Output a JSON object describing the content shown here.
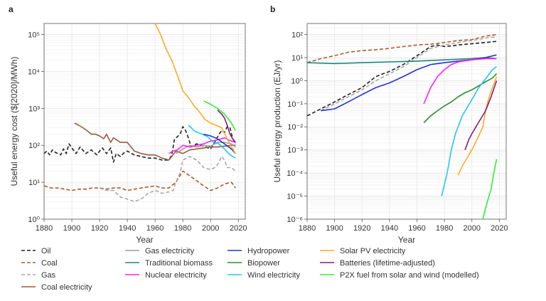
{
  "colors": {
    "oil": "#222222",
    "coal": "#b05a2c",
    "gas": "#a8a8a8",
    "coal_electricity": "#9a5a3c",
    "gas_electricity": "#9c9c9c",
    "traditional_biomass": "#1a8a7a",
    "nuclear_electricity": "#ff22ee",
    "hydropower": "#2233dd",
    "biopower": "#2e8b2e",
    "wind_electricity": "#22c8ee",
    "solar_pv_electricity": "#ffaa22",
    "batteries": "#8a1a7a",
    "p2x": "#33ee33"
  },
  "legend": [
    {
      "label": "Oil",
      "key": "oil",
      "style": "dashed"
    },
    {
      "label": "Coal",
      "key": "coal",
      "style": "dashed"
    },
    {
      "label": "Gas",
      "key": "gas",
      "style": "dashed"
    },
    {
      "label": "Coal electricity",
      "key": "coal_electricity",
      "style": "solid"
    },
    {
      "label": "Gas electricity",
      "key": "gas_electricity",
      "style": "solid"
    },
    {
      "label": "Traditional biomass",
      "key": "traditional_biomass",
      "style": "solid"
    },
    {
      "label": "Nuclear electricity",
      "key": "nuclear_electricity",
      "style": "solid"
    },
    {
      "label": "Hydropower",
      "key": "hydropower",
      "style": "solid"
    },
    {
      "label": "Biopower",
      "key": "biopower",
      "style": "solid"
    },
    {
      "label": "Wind electricity",
      "key": "wind_electricity",
      "style": "solid"
    },
    {
      "label": "Solar PV electricity",
      "key": "solar_pv_electricity",
      "style": "solid"
    },
    {
      "label": "Batteries (lifetime-adjusted)",
      "key": "batteries",
      "style": "solid"
    },
    {
      "label": "P2X fuel from solar and wind (modelled)",
      "key": "p2x",
      "style": "solid"
    }
  ],
  "chart_data": [
    {
      "type": "line",
      "panel": "a",
      "xlabel": "Year",
      "ylabel": "Useful energy cost ($[2020]/MWh)",
      "xlim": [
        1880,
        2025
      ],
      "ylim": [
        1,
        200000
      ],
      "yscale": "log",
      "xticks": [
        "1880",
        "1900",
        "1920",
        "1940",
        "1960",
        "1980",
        "2000",
        "2020"
      ],
      "yticks": [
        "10^0",
        "10^1",
        "10^2",
        "10^3",
        "10^4",
        "10^5"
      ],
      "grid": true,
      "series": [
        {
          "name": "Oil",
          "key": "oil",
          "style": "dashed",
          "x": [
            1880,
            1882,
            1884,
            1886,
            1888,
            1890,
            1892,
            1894,
            1896,
            1898,
            1900,
            1903,
            1906,
            1910,
            1914,
            1918,
            1920,
            1922,
            1925,
            1928,
            1930,
            1932,
            1935,
            1938,
            1940,
            1945,
            1950,
            1955,
            1960,
            1965,
            1970,
            1972,
            1974,
            1976,
            1978,
            1980,
            1982,
            1984,
            1986,
            1988,
            1990,
            1995,
            2000,
            2004,
            2006,
            2008,
            2010,
            2012,
            2014,
            2016,
            2018
          ],
          "y": [
            60,
            70,
            55,
            75,
            65,
            60,
            55,
            80,
            60,
            110,
            85,
            60,
            90,
            60,
            75,
            55,
            70,
            85,
            60,
            85,
            35,
            60,
            50,
            65,
            70,
            55,
            50,
            45,
            45,
            40,
            40,
            55,
            150,
            170,
            200,
            320,
            250,
            160,
            90,
            100,
            110,
            95,
            80,
            140,
            200,
            250,
            220,
            320,
            300,
            150,
            110
          ]
        },
        {
          "name": "Coal",
          "key": "coal",
          "style": "dashed",
          "x": [
            1880,
            1885,
            1890,
            1895,
            1900,
            1905,
            1910,
            1915,
            1920,
            1925,
            1930,
            1935,
            1940,
            1945,
            1950,
            1955,
            1960,
            1965,
            1970,
            1975,
            1980,
            1985,
            1990,
            1995,
            2000,
            2005,
            2010,
            2015,
            2018
          ],
          "y": [
            8,
            7,
            7,
            6.5,
            6,
            6.5,
            6.5,
            7,
            7,
            6.5,
            7,
            7,
            6,
            6.5,
            7,
            7.5,
            8,
            7,
            7,
            10,
            20,
            15,
            11,
            8,
            6,
            7,
            9,
            10,
            7
          ]
        },
        {
          "name": "Gas",
          "key": "gas",
          "style": "dashed",
          "x": [
            1920,
            1925,
            1930,
            1935,
            1940,
            1945,
            1950,
            1955,
            1960,
            1965,
            1970,
            1973,
            1975,
            1978,
            1980,
            1985,
            1990,
            1995,
            2000,
            2003,
            2005,
            2008,
            2010,
            2012,
            2015,
            2018
          ],
          "y": [
            7,
            6,
            6,
            4,
            3.5,
            3,
            3.5,
            5,
            6,
            5,
            5.5,
            6,
            10,
            18,
            40,
            50,
            40,
            25,
            22,
            25,
            30,
            50,
            40,
            25,
            25,
            20
          ]
        },
        {
          "name": "Coal electricity",
          "key": "coal_electricity",
          "style": "solid",
          "x": [
            1902,
            1905,
            1908,
            1911,
            1914,
            1917,
            1920,
            1923,
            1925,
            1928,
            1930,
            1935,
            1940,
            1945,
            1950,
            1955,
            1960,
            1965,
            1970,
            1975,
            1980,
            1985,
            1990,
            1995,
            2000,
            2005,
            2010,
            2015,
            2018
          ],
          "y": [
            400,
            350,
            300,
            250,
            200,
            200,
            180,
            150,
            200,
            120,
            160,
            120,
            120,
            70,
            60,
            55,
            55,
            45,
            40,
            70,
            60,
            75,
            80,
            85,
            90,
            90,
            95,
            100,
            100
          ]
        },
        {
          "name": "Gas electricity",
          "key": "gas_electricity",
          "style": "solid",
          "x": [
            1975,
            1980,
            1985,
            1990,
            1995,
            2000,
            2005,
            2010,
            2015,
            2018
          ],
          "y": [
            60,
            80,
            100,
            90,
            100,
            95,
            120,
            120,
            110,
            90
          ]
        },
        {
          "name": "Nuclear electricity",
          "key": "nuclear_electricity",
          "style": "solid",
          "x": [
            1970,
            1973,
            1976,
            1980,
            1985,
            1990,
            1995,
            2000,
            2005,
            2010,
            2015,
            2018
          ],
          "y": [
            60,
            70,
            75,
            100,
            90,
            100,
            110,
            130,
            140,
            160,
            130,
            120
          ]
        },
        {
          "name": "Wind electricity",
          "key": "wind_electricity",
          "style": "solid",
          "x": [
            1984,
            1986,
            1988,
            1990,
            1994,
            1998,
            2002,
            2006,
            2010,
            2014,
            2018
          ],
          "y": [
            350,
            300,
            250,
            230,
            200,
            170,
            120,
            110,
            80,
            55,
            45
          ]
        },
        {
          "name": "Hydropower",
          "key": "hydropower",
          "style": "solid",
          "x": [
            1995,
            2000,
            2005,
            2010,
            2015,
            2018
          ],
          "y": [
            200,
            180,
            150,
            110,
            80,
            60
          ]
        },
        {
          "name": "Batteries (lifetime-adjusted)",
          "key": "batteries",
          "style": "solid",
          "x": [
            2005,
            2008,
            2010,
            2012,
            2014,
            2016,
            2018
          ],
          "y": [
            900,
            700,
            550,
            350,
            200,
            150,
            120
          ]
        },
        {
          "name": "Solar PV electricity",
          "key": "solar_pv_electricity",
          "style": "solid",
          "x": [
            1960,
            1964,
            1968,
            1972,
            1976,
            1980,
            1984,
            1988,
            1992,
            1996,
            2000,
            2004,
            2008,
            2012,
            2016,
            2018
          ],
          "y": [
            200000,
            100000,
            40000,
            20000,
            8000,
            3000,
            2000,
            1200,
            800,
            500,
            400,
            350,
            300,
            150,
            80,
            60
          ]
        },
        {
          "name": "P2X fuel from solar and wind (modelled)",
          "key": "p2x",
          "style": "solid",
          "x": [
            1995,
            2000,
            2005,
            2010,
            2015,
            2018
          ],
          "y": [
            1600,
            1300,
            1000,
            700,
            400,
            250
          ]
        }
      ]
    },
    {
      "type": "line",
      "panel": "b",
      "xlabel": "Year",
      "ylabel": "Useful energy production (EJ/yr)",
      "xlim": [
        1880,
        2025
      ],
      "ylim": [
        1e-06,
        300
      ],
      "yscale": "log",
      "xticks": [
        "1880",
        "1900",
        "1920",
        "1940",
        "1960",
        "1980",
        "2000",
        "2020"
      ],
      "yticks": [
        "10^-6",
        "10^-5",
        "10^-4",
        "10^-3",
        "10^-2",
        "10^-1",
        "10^0",
        "10^1",
        "10^2"
      ],
      "grid": true,
      "series": [
        {
          "name": "Oil",
          "key": "oil",
          "style": "dashed",
          "x": [
            1880,
            1890,
            1900,
            1910,
            1920,
            1930,
            1940,
            1950,
            1960,
            1970,
            1975,
            1980,
            1990,
            2000,
            2010,
            2018
          ],
          "y": [
            0.03,
            0.06,
            0.12,
            0.25,
            0.5,
            1.5,
            2.5,
            5,
            12,
            30,
            35,
            30,
            35,
            40,
            45,
            50
          ]
        },
        {
          "name": "Coal",
          "key": "coal",
          "style": "dashed",
          "x": [
            1880,
            1890,
            1900,
            1910,
            1920,
            1930,
            1940,
            1950,
            1960,
            1970,
            1980,
            1990,
            2000,
            2010,
            2018
          ],
          "y": [
            6,
            9,
            12,
            17,
            20,
            22,
            25,
            30,
            35,
            38,
            45,
            55,
            60,
            85,
            100
          ]
        },
        {
          "name": "Gas",
          "key": "gas",
          "style": "dashed",
          "x": [
            1890,
            1900,
            1910,
            1920,
            1930,
            1940,
            1950,
            1960,
            1970,
            1980,
            1990,
            2000,
            2010,
            2018
          ],
          "y": [
            0.05,
            0.1,
            0.2,
            0.4,
            1,
            2,
            4,
            10,
            25,
            35,
            45,
            55,
            70,
            80
          ]
        },
        {
          "name": "Traditional biomass",
          "key": "traditional_biomass",
          "style": "solid",
          "x": [
            1880,
            1900,
            1920,
            1940,
            1960,
            1980,
            2000,
            2010,
            2018
          ],
          "y": [
            6,
            5.5,
            6,
            6.5,
            7,
            8,
            9,
            10,
            9
          ]
        },
        {
          "name": "Hydropower",
          "key": "hydropower",
          "style": "solid",
          "x": [
            1890,
            1900,
            1910,
            1920,
            1930,
            1940,
            1950,
            1960,
            1970,
            1980,
            1990,
            2000,
            2010,
            2018
          ],
          "y": [
            0.05,
            0.06,
            0.12,
            0.25,
            0.5,
            0.8,
            1.5,
            3,
            5,
            6,
            7,
            8,
            10,
            13
          ]
        },
        {
          "name": "Nuclear electricity",
          "key": "nuclear_electricity",
          "style": "solid",
          "x": [
            1965,
            1970,
            1975,
            1980,
            1985,
            1990,
            2000,
            2010,
            2018
          ],
          "y": [
            0.1,
            0.5,
            1.5,
            3,
            5,
            6.5,
            8,
            9,
            9
          ]
        },
        {
          "name": "Biopower",
          "key": "biopower",
          "style": "solid",
          "x": [
            1965,
            1970,
            1975,
            1980,
            1985,
            1990,
            1995,
            2000,
            2005,
            2010,
            2015,
            2018
          ],
          "y": [
            0.015,
            0.03,
            0.05,
            0.08,
            0.12,
            0.2,
            0.3,
            0.4,
            0.6,
            0.9,
            1.3,
            2
          ]
        },
        {
          "name": "Wind electricity",
          "key": "wind_electricity",
          "style": "solid",
          "x": [
            1978,
            1982,
            1985,
            1988,
            1990,
            1993,
            1996,
            2000,
            2005,
            2010,
            2015,
            2018
          ],
          "y": [
            1e-05,
            0.0001,
            0.001,
            0.005,
            0.01,
            0.03,
            0.06,
            0.15,
            0.5,
            1.2,
            3,
            4
          ]
        },
        {
          "name": "Solar PV electricity",
          "key": "solar_pv_electricity",
          "style": "solid",
          "x": [
            1990,
            1993,
            1996,
            2000,
            2004,
            2008,
            2010,
            2012,
            2015,
            2018
          ],
          "y": [
            8e-05,
            0.0002,
            0.0004,
            0.001,
            0.003,
            0.01,
            0.05,
            0.15,
            0.5,
            1.5
          ]
        },
        {
          "name": "Batteries (lifetime-adjusted)",
          "key": "batteries",
          "style": "solid",
          "x": [
            1995,
            1998,
            2000,
            2003,
            2006,
            2010,
            2014,
            2018
          ],
          "y": [
            0.001,
            0.003,
            0.005,
            0.01,
            0.02,
            0.05,
            0.2,
            1
          ]
        },
        {
          "name": "P2X fuel from solar and wind (modelled)",
          "key": "p2x",
          "style": "solid",
          "x": [
            2008,
            2010,
            2012,
            2014,
            2016,
            2018
          ],
          "y": [
            1e-06,
            3e-06,
            8e-06,
            2e-05,
            0.0001,
            0.0004
          ]
        }
      ]
    }
  ]
}
